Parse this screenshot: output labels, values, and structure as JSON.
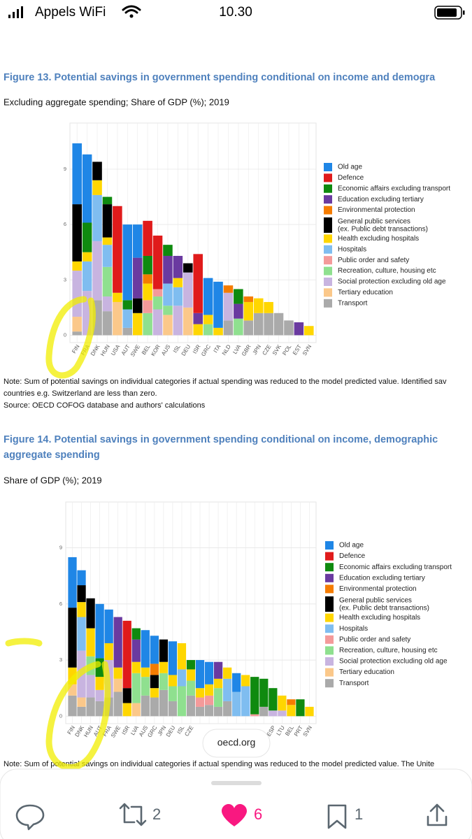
{
  "status": {
    "carrier": "Appels WiFi",
    "time": "10.30"
  },
  "figure13": {
    "title": "Figure 13. Potential savings in government spending conditional on income and demogra",
    "subtitle": "Excluding aggregate spending; Share of GDP (%); 2019",
    "chart": {
      "type": "bar",
      "stacked": true,
      "grid": true,
      "ylim": [
        -0.4,
        11.5
      ],
      "yticks": [
        0,
        3,
        6,
        9
      ],
      "categories": [
        "FIN",
        "FRA",
        "DNK",
        "HUN",
        "USA",
        "AUT",
        "SWE",
        "BEL",
        "KOR",
        "AUS",
        "ISL",
        "DEU",
        "ISR",
        "GRC",
        "ITA",
        "NLD",
        "LVA",
        "GBR",
        "JPN",
        "CZE",
        "SVK",
        "POL",
        "EST",
        "SVN"
      ],
      "series": [
        {
          "name": "Old age",
          "color": "#1f86e6",
          "values": [
            3.3,
            3.7,
            0,
            0,
            0,
            4.1,
            1.8,
            0,
            0,
            0,
            0,
            0,
            0,
            2.0,
            2.5,
            0,
            0,
            0,
            0,
            0,
            0,
            0,
            0,
            0
          ]
        },
        {
          "name": "Defence",
          "color": "#e01b1b",
          "values": [
            0,
            0,
            0,
            0,
            4.7,
            0,
            0,
            1.9,
            2.9,
            0,
            0,
            0,
            3.2,
            0,
            0,
            0,
            0,
            0,
            0,
            0,
            0,
            0,
            0,
            0
          ]
        },
        {
          "name": "Economic affairs excluding transport",
          "color": "#0f8a0f",
          "values": [
            0,
            1.6,
            0,
            0.4,
            0,
            0.5,
            0,
            1.0,
            0,
            0.6,
            0,
            0,
            0,
            0,
            0,
            0,
            0.8,
            0,
            0,
            0,
            0,
            0,
            0,
            0
          ]
        },
        {
          "name": "Education excluding tertiary",
          "color": "#6a3aa0",
          "values": [
            0,
            0,
            0,
            0,
            0,
            0,
            2.2,
            0,
            0,
            1.5,
            1.2,
            0,
            0.6,
            0,
            0,
            0,
            0.8,
            0,
            0,
            0,
            0,
            0,
            0.7,
            0
          ]
        },
        {
          "name": "Environmental protection",
          "color": "#f57c00",
          "values": [
            0,
            0,
            0,
            0,
            0,
            0,
            0,
            0.5,
            0,
            0,
            0,
            0,
            0,
            0,
            0,
            0.4,
            0,
            0.3,
            0,
            0,
            0,
            0,
            0,
            0
          ]
        },
        {
          "name": "General public services\n(ex. Public debt transactions)",
          "color": "#000000",
          "values": [
            3.1,
            0,
            1.0,
            1.8,
            0,
            0,
            0.8,
            0,
            0,
            0,
            0,
            0.5,
            0,
            0,
            0,
            0,
            0,
            0,
            0,
            0,
            0,
            0,
            0,
            0
          ]
        },
        {
          "name": "Health excluding hospitals",
          "color": "#ffd600",
          "values": [
            0.5,
            0.5,
            0.8,
            0.4,
            0.5,
            0,
            1.2,
            0.9,
            0,
            0,
            0.5,
            0,
            0.6,
            0.5,
            0.4,
            0,
            0,
            1.0,
            0.8,
            0.6,
            0,
            0,
            0,
            0.5
          ]
        },
        {
          "name": "Hospitals",
          "color": "#7fbdf0",
          "values": [
            0,
            1.6,
            2.5,
            1.2,
            0,
            1.0,
            0,
            0,
            0,
            1.2,
            1.0,
            0,
            0,
            0,
            0,
            0,
            0,
            0,
            0,
            0,
            0,
            0,
            0,
            0
          ]
        },
        {
          "name": "Public order and safety",
          "color": "#f49a9a",
          "values": [
            0,
            0,
            0,
            0,
            0,
            0,
            0,
            0.7,
            0.4,
            0,
            0,
            0,
            0,
            0,
            0,
            0,
            0,
            0,
            0,
            0,
            0,
            0,
            0,
            0
          ]
        },
        {
          "name": "Recreation, culture, housing etc",
          "color": "#8fe08f",
          "values": [
            0,
            0,
            0,
            1.6,
            0,
            0,
            0,
            1.2,
            0.7,
            0.5,
            0,
            0,
            0,
            0.6,
            0,
            0,
            0.9,
            0,
            0,
            0,
            0,
            0,
            0,
            0
          ]
        },
        {
          "name": "Social protection excluding old age",
          "color": "#c8b4e0",
          "values": [
            2.5,
            2.4,
            3.2,
            0.8,
            0,
            0,
            0,
            0,
            1.4,
            0,
            1.6,
            1.9,
            0,
            0,
            0,
            1.5,
            0,
            0,
            0,
            0,
            0,
            0,
            0,
            0
          ]
        },
        {
          "name": "Tertiary education",
          "color": "#fbc88a",
          "values": [
            0.8,
            0,
            0,
            0,
            1.8,
            0,
            0,
            0,
            0,
            1.1,
            0,
            1.5,
            0,
            0,
            0,
            0,
            0,
            0,
            0,
            0,
            0,
            0,
            0,
            0
          ]
        },
        {
          "name": "Transport",
          "color": "#aaaaaa",
          "values": [
            0.2,
            0,
            1.9,
            1.3,
            0,
            0.4,
            0,
            0,
            0,
            0,
            0,
            0,
            0,
            0,
            0,
            0.8,
            0,
            0.8,
            1.2,
            1.2,
            1.2,
            0.8,
            0,
            0
          ]
        }
      ]
    },
    "notes": [
      "Note: Sum of potential savings on individual categories if actual spending was reduced to the model predicted value. Identified sav",
      "countries e.g. Switzerland are less than zero.",
      "Source: OECD COFOG database and authors' calculations"
    ]
  },
  "figure14": {
    "title": [
      "Figure 14. Potential savings in government spending conditional on income, demographic",
      "aggregate spending"
    ],
    "subtitle": "Share of GDP (%); 2019",
    "chart": {
      "type": "bar",
      "stacked": true,
      "grid": true,
      "ylim": [
        -0.4,
        11.45
      ],
      "yticks": [
        0,
        3,
        6,
        9
      ],
      "categories": [
        "FIN",
        "DNK",
        "HUN",
        "AUT",
        "FRA",
        "SWE",
        "ISR",
        "LVA",
        "AUS",
        "GRC",
        "JPN",
        "DEU",
        "ISL",
        "CZE",
        null,
        null,
        null,
        null,
        null,
        null,
        null,
        null,
        "ESP",
        "LTU",
        "BEL",
        "PRT",
        "SVN"
      ],
      "series": [
        {
          "name": "Old age",
          "color": "#1f86e6",
          "values": [
            2.7,
            0.8,
            0,
            2.9,
            1.8,
            0,
            0,
            0,
            2.0,
            1.5,
            0,
            1.8,
            0,
            0,
            1.5,
            1.2,
            0,
            0,
            1.0,
            0,
            0,
            0,
            0,
            0,
            0,
            0,
            0
          ]
        },
        {
          "name": "Defence",
          "color": "#e01b1b",
          "values": [
            0,
            0,
            0,
            0,
            0,
            0,
            3.6,
            0,
            0,
            0,
            0,
            0,
            0,
            0,
            0,
            0,
            0,
            0,
            0,
            0,
            0,
            0,
            0,
            0,
            0,
            0,
            0
          ]
        },
        {
          "name": "Economic affairs excluding transport",
          "color": "#0f8a0f",
          "values": [
            0,
            0,
            0,
            1.0,
            0,
            0,
            0,
            0.6,
            0,
            0,
            0,
            0,
            0,
            0.5,
            0,
            0,
            0,
            0,
            0,
            0,
            2.0,
            1.5,
            1.2,
            0,
            0,
            0.9,
            0
          ]
        },
        {
          "name": "Education excluding tertiary",
          "color": "#6a3aa0",
          "values": [
            0,
            0,
            0,
            0,
            0,
            2.7,
            0,
            1.2,
            0,
            0,
            0,
            0,
            0,
            0,
            0,
            0,
            0.9,
            0,
            0,
            0,
            0,
            0,
            0,
            0,
            0,
            0,
            0
          ]
        },
        {
          "name": "Environmental protection",
          "color": "#f57c00",
          "values": [
            0,
            0,
            0,
            0,
            0,
            0,
            0,
            0,
            0,
            0.6,
            0,
            0,
            0,
            0,
            0,
            0,
            0,
            0,
            0,
            0,
            0,
            0,
            0,
            0,
            0.3,
            0,
            0
          ]
        },
        {
          "name": "General public services\n(ex. Public debt transactions)",
          "color": "#000000",
          "values": [
            3.2,
            0.9,
            1.6,
            0,
            0,
            0,
            0.8,
            0,
            0,
            0.7,
            1.2,
            0,
            0,
            0,
            0,
            0,
            0,
            0,
            0,
            0,
            0,
            0,
            0,
            0,
            0,
            0,
            0
          ]
        },
        {
          "name": "Health excluding hospitals",
          "color": "#ffd600",
          "values": [
            0.9,
            0.8,
            1.5,
            0.7,
            0.9,
            0.6,
            0.7,
            0.6,
            0.5,
            0.5,
            0.6,
            0.6,
            1.4,
            0.6,
            0.5,
            0.6,
            0.5,
            0.6,
            0,
            0.6,
            0,
            0,
            0,
            0.8,
            0.6,
            0,
            0.5
          ]
        },
        {
          "name": "Hospitals",
          "color": "#7fbdf0",
          "values": [
            0,
            1.8,
            0,
            0,
            0,
            0,
            0,
            0,
            0,
            0,
            0,
            0,
            0.9,
            0,
            0,
            0,
            0,
            1.2,
            1.3,
            1.6,
            0,
            0,
            0,
            0,
            0,
            0,
            0
          ]
        },
        {
          "name": "Public order and safety",
          "color": "#f49a9a",
          "values": [
            0,
            0,
            0,
            0,
            0,
            0,
            0,
            0,
            0,
            0,
            0,
            0,
            0,
            0,
            0.5,
            0.5,
            0,
            0,
            0,
            0,
            0.1,
            0,
            0,
            0,
            0,
            0,
            0
          ]
        },
        {
          "name": "Recreation, culture, housing etc",
          "color": "#8fe08f",
          "values": [
            0,
            0,
            1.0,
            0,
            0,
            0,
            0,
            1.6,
            1.0,
            0,
            0.9,
            0.8,
            1.6,
            0.8,
            0,
            0,
            1.0,
            0,
            0,
            0,
            0,
            0,
            0,
            0,
            0,
            0,
            0
          ]
        },
        {
          "name": "Social protection excluding old age",
          "color": "#c8b4e0",
          "values": [
            0,
            2.5,
            1.2,
            0.6,
            2.0,
            0,
            0,
            0,
            0,
            0,
            0,
            0,
            0,
            0,
            0,
            0,
            0,
            0,
            0,
            0,
            0,
            0,
            0.3,
            0.3,
            0,
            0,
            0
          ]
        },
        {
          "name": "Tertiary education",
          "color": "#fbc88a",
          "values": [
            0.6,
            0.5,
            0,
            0,
            0,
            0.7,
            0,
            0.7,
            0,
            0,
            0,
            0,
            0,
            0,
            0,
            0,
            0,
            0,
            0,
            0,
            0,
            0,
            0,
            0,
            0,
            0,
            0
          ]
        },
        {
          "name": "Transport",
          "color": "#aaaaaa",
          "values": [
            1.1,
            0.5,
            1.0,
            0.8,
            1.0,
            1.3,
            0,
            0,
            1.1,
            1.0,
            1.4,
            0.8,
            0,
            1.1,
            0.5,
            0.6,
            0.5,
            0.8,
            0,
            0,
            0,
            0.5,
            0,
            0,
            0,
            0,
            0
          ]
        }
      ]
    },
    "notes": [
      "Note: Sum of potential savings on individual categories if actual spending was reduced to the model predicted value. The Unite"
    ]
  },
  "popup": "oecd.org",
  "toolbar": {
    "retweets": 2,
    "likes": 6,
    "bookmarks": 1
  }
}
